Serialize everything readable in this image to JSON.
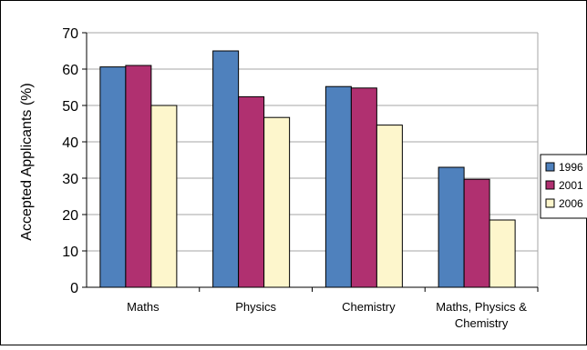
{
  "chart_data": {
    "type": "bar",
    "title": "",
    "xlabel": "",
    "ylabel": "Accepted Applicants (%)",
    "ylim": [
      0,
      70
    ],
    "yticks": [
      0,
      10,
      20,
      30,
      40,
      50,
      60,
      70
    ],
    "grid": true,
    "legend_position": "right",
    "categories": [
      "Maths",
      "Physics",
      "Chemistry",
      "Maths, Physics & Chemistry"
    ],
    "series": [
      {
        "name": "1996",
        "color": "#4f81bd",
        "values": [
          60.6,
          65,
          55.2,
          33
        ]
      },
      {
        "name": "2001",
        "color": "#b03070",
        "values": [
          61,
          52.4,
          54.8,
          29.7
        ]
      },
      {
        "name": "2006",
        "color": "#fdf6cc",
        "values": [
          50,
          46.7,
          44.6,
          18.5
        ]
      }
    ]
  }
}
